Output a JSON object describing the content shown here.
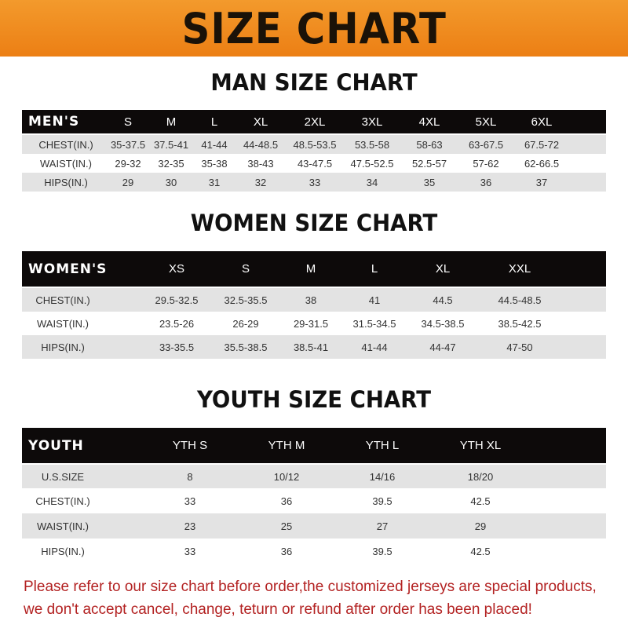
{
  "banner": {
    "title": "SIZE CHART",
    "color": "#ec7f14"
  },
  "men": {
    "title": "MAN SIZE CHART",
    "header": "MEN'S",
    "sizes": [
      "S",
      "M",
      "L",
      "XL",
      "2XL",
      "3XL",
      "4XL",
      "5XL",
      "6XL"
    ],
    "rows": [
      {
        "label": "CHEST(IN.)",
        "values": [
          "35-37.5",
          "37.5-41",
          "41-44",
          "44-48.5",
          "48.5-53.5",
          "53.5-58",
          "58-63",
          "63-67.5",
          "67.5-72"
        ]
      },
      {
        "label": "WAIST(IN.)",
        "values": [
          "29-32",
          "32-35",
          "35-38",
          "38-43",
          "43-47.5",
          "47.5-52.5",
          "52.5-57",
          "57-62",
          "62-66.5"
        ]
      },
      {
        "label": "HIPS(IN.)",
        "values": [
          "29",
          "30",
          "31",
          "32",
          "33",
          "34",
          "35",
          "36",
          "37"
        ]
      }
    ]
  },
  "women": {
    "title": "WOMEN SIZE CHART",
    "header": "WOMEN'S",
    "sizes": [
      "XS",
      "S",
      "M",
      "L",
      "XL",
      "XXL"
    ],
    "rows": [
      {
        "label": "CHEST(IN.)",
        "values": [
          "29.5-32.5",
          "32.5-35.5",
          "38",
          "41",
          "44.5",
          "44.5-48.5"
        ]
      },
      {
        "label": "WAIST(IN.)",
        "values": [
          "23.5-26",
          "26-29",
          "29-31.5",
          "31.5-34.5",
          "34.5-38.5",
          "38.5-42.5"
        ]
      },
      {
        "label": "HIPS(IN.)",
        "values": [
          "33-35.5",
          "35.5-38.5",
          "38.5-41",
          "41-44",
          "44-47",
          "47-50"
        ]
      }
    ]
  },
  "youth": {
    "title": "YOUTH SIZE CHART",
    "header": "YOUTH",
    "sizes": [
      "YTH S",
      "YTH M",
      "YTH L",
      "YTH XL"
    ],
    "rows": [
      {
        "label": "U.S.SIZE",
        "values": [
          "8",
          "10/12",
          "14/16",
          "18/20"
        ]
      },
      {
        "label": "CHEST(IN.)",
        "values": [
          "33",
          "36",
          "39.5",
          "42.5"
        ]
      },
      {
        "label": "WAIST(IN.)",
        "values": [
          "23",
          "25",
          "27",
          "29"
        ]
      },
      {
        "label": "HIPS(IN.)",
        "values": [
          "33",
          "36",
          "39.5",
          "42.5"
        ]
      }
    ]
  },
  "note": {
    "line1": "Please refer to our size chart before order,the customized jerseys are special products,",
    "line2": "we don't accept cancel, change, teturn or refund after order has been placed!"
  }
}
